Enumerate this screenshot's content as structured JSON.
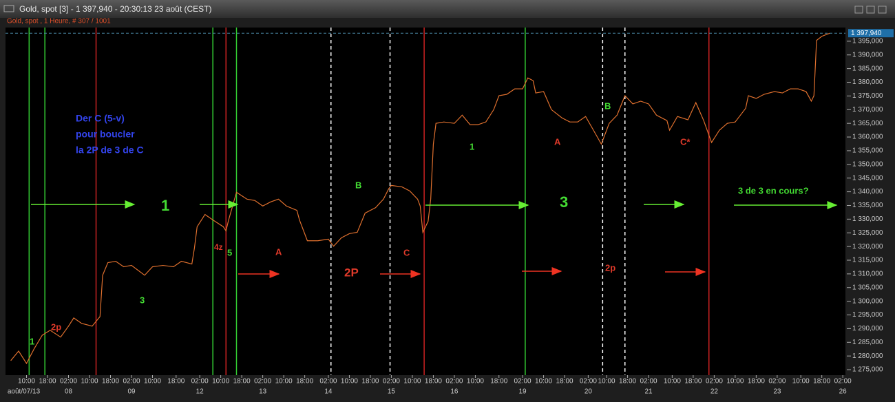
{
  "chart_data": {
    "type": "line",
    "title": "Gold, spot [3] - 1 397,940 - 20:30:13  23 août (CEST)",
    "subtitle": "Gold, spot , 1 Heure, # 307 / 1001",
    "color": "#e0702e",
    "x": [
      2,
      5,
      8,
      11,
      14,
      17,
      21,
      24,
      26,
      29,
      33,
      36,
      37,
      39,
      42,
      45,
      48,
      53,
      56,
      60,
      64,
      67,
      71,
      72,
      73,
      76,
      79,
      83,
      84,
      85,
      88,
      92,
      95,
      98,
      101,
      104,
      107,
      111,
      112,
      115,
      119,
      123,
      125,
      128,
      131,
      134,
      137,
      141,
      144,
      146,
      147,
      151,
      154,
      157,
      158,
      159,
      161,
      162,
      163,
      164,
      167,
      171,
      174,
      177,
      180,
      183,
      186,
      188,
      191,
      194,
      197,
      199,
      201,
      202,
      205,
      208,
      212,
      215,
      218,
      221,
      224,
      227,
      230,
      233,
      236,
      239,
      242,
      245,
      248,
      252,
      253,
      256,
      260,
      263,
      266,
      269,
      272,
      275,
      278,
      282,
      283,
      286,
      289,
      293,
      296,
      299,
      302,
      305,
      307,
      308,
      309,
      311,
      314
    ],
    "values": [
      1278.3,
      1281.8,
      1277.3,
      1282.8,
      1287.6,
      1289.4,
      1286.9,
      1290.9,
      1293.9,
      1291.9,
      1290.9,
      1294.4,
      1309.5,
      1314.1,
      1314.6,
      1312.6,
      1313.1,
      1309.5,
      1312.6,
      1313.1,
      1312.6,
      1314.6,
      1313.6,
      1319.6,
      1327.2,
      1331.7,
      1329.7,
      1327.2,
      1325.7,
      1329.7,
      1339.8,
      1337.3,
      1336.8,
      1334.8,
      1336.3,
      1337.3,
      1334.8,
      1333.2,
      1329.7,
      1322.1,
      1322.1,
      1322.7,
      1320.1,
      1323.2,
      1324.7,
      1325.2,
      1332.2,
      1334.2,
      1337.3,
      1341.1,
      1342.3,
      1341.8,
      1340.3,
      1337.3,
      1334.8,
      1325.2,
      1329.2,
      1337.3,
      1357.4,
      1365.0,
      1365.5,
      1365.0,
      1368.0,
      1364.5,
      1364.5,
      1365.5,
      1370.0,
      1375.1,
      1375.6,
      1377.6,
      1377.6,
      1381.6,
      1380.6,
      1376.1,
      1376.6,
      1370.0,
      1367.0,
      1365.5,
      1365.5,
      1367.5,
      1362.5,
      1357.4,
      1365.0,
      1368.0,
      1375.1,
      1372.1,
      1373.1,
      1372.1,
      1368.0,
      1366.0,
      1362.5,
      1367.5,
      1366.3,
      1372.6,
      1366.0,
      1358.0,
      1362.5,
      1365.0,
      1365.5,
      1370.5,
      1375.1,
      1374.1,
      1375.6,
      1376.6,
      1376.1,
      1377.6,
      1377.6,
      1376.6,
      1373.1,
      1375.1,
      1395.3,
      1396.8,
      1397.9
    ],
    "xlim": [
      0,
      320
    ],
    "ylim": [
      1273,
      1400
    ],
    "yticks": [
      {
        "value": 1275,
        "label": "1 275,000"
      },
      {
        "value": 1280,
        "label": "1 280,000"
      },
      {
        "value": 1285,
        "label": "1 285,000"
      },
      {
        "value": 1290,
        "label": "1 290,000"
      },
      {
        "value": 1295,
        "label": "1 295,000"
      },
      {
        "value": 1300,
        "label": "1 300,000"
      },
      {
        "value": 1305,
        "label": "1 305,000"
      },
      {
        "value": 1310,
        "label": "1 310,000"
      },
      {
        "value": 1315,
        "label": "1 315,000"
      },
      {
        "value": 1320,
        "label": "1 320,000"
      },
      {
        "value": 1325,
        "label": "1 325,000"
      },
      {
        "value": 1330,
        "label": "1 330,000"
      },
      {
        "value": 1335,
        "label": "1 335,000"
      },
      {
        "value": 1340,
        "label": "1 340,000"
      },
      {
        "value": 1345,
        "label": "1 345,000"
      },
      {
        "value": 1350,
        "label": "1 350,000"
      },
      {
        "value": 1355,
        "label": "1 355,000"
      },
      {
        "value": 1360,
        "label": "1 360,000"
      },
      {
        "value": 1365,
        "label": "1 365,000"
      },
      {
        "value": 1370,
        "label": "1 370,000"
      },
      {
        "value": 1375,
        "label": "1 375,000"
      },
      {
        "value": 1380,
        "label": "1 380,000"
      },
      {
        "value": 1385,
        "label": "1 385,000"
      },
      {
        "value": 1390,
        "label": "1 390,000"
      },
      {
        "value": 1395,
        "label": "1 395,000"
      }
    ],
    "last_price": {
      "value": 1397.94,
      "label": "1 397,940"
    },
    "xticks": [
      {
        "value": 8,
        "label": "10:00"
      },
      {
        "value": 16,
        "label": "18:00"
      },
      {
        "value": 24,
        "label": "02:00"
      },
      {
        "value": 32,
        "label": "10:00"
      },
      {
        "value": 40,
        "label": "18:00"
      },
      {
        "value": 48,
        "label": "02:00"
      },
      {
        "value": 56,
        "label": "10:00"
      },
      {
        "value": 65,
        "label": "18:00"
      },
      {
        "value": 74,
        "label": "02:00"
      },
      {
        "value": 82,
        "label": "10:00"
      },
      {
        "value": 90,
        "label": "18:00"
      },
      {
        "value": 98,
        "label": "02:00"
      },
      {
        "value": 106,
        "label": "10:00"
      },
      {
        "value": 114,
        "label": "18:00"
      },
      {
        "value": 123,
        "label": "02:00"
      },
      {
        "value": 131,
        "label": "10:00"
      },
      {
        "value": 139,
        "label": "18:00"
      },
      {
        "value": 147,
        "label": "02:00"
      },
      {
        "value": 155,
        "label": "10:00"
      },
      {
        "value": 163,
        "label": "18:00"
      },
      {
        "value": 171,
        "label": "02:00"
      },
      {
        "value": 179,
        "label": "10:00"
      },
      {
        "value": 188,
        "label": "18:00"
      },
      {
        "value": 197,
        "label": "02:00"
      },
      {
        "value": 205,
        "label": "10:00"
      },
      {
        "value": 213,
        "label": "18:00"
      },
      {
        "value": 222,
        "label": "02:00"
      },
      {
        "value": 229,
        "label": "10:00"
      },
      {
        "value": 237,
        "label": "18:00"
      },
      {
        "value": 245,
        "label": "02:00"
      },
      {
        "value": 254,
        "label": "10:00"
      },
      {
        "value": 262,
        "label": "18:00"
      },
      {
        "value": 270,
        "label": "02:00"
      },
      {
        "value": 278,
        "label": "10:00"
      },
      {
        "value": 286,
        "label": "18:00"
      },
      {
        "value": 294,
        "label": "02:00"
      },
      {
        "value": 303,
        "label": "10:00"
      },
      {
        "value": 311,
        "label": "18:00"
      },
      {
        "value": 319,
        "label": "02:00"
      }
    ],
    "xdates": [
      {
        "value": 8,
        "label": "août/07/13"
      },
      {
        "value": 24,
        "label": "08"
      },
      {
        "value": 48,
        "label": "09"
      },
      {
        "value": 74,
        "label": "12"
      },
      {
        "value": 98,
        "label": "13"
      },
      {
        "value": 123,
        "label": "14"
      },
      {
        "value": 147,
        "label": "15"
      },
      {
        "value": 171,
        "label": "16"
      },
      {
        "value": 197,
        "label": "19"
      },
      {
        "value": 222,
        "label": "20"
      },
      {
        "value": 245,
        "label": "21"
      },
      {
        "value": 270,
        "label": "22"
      },
      {
        "value": 294,
        "label": "23"
      },
      {
        "value": 319,
        "label": "26"
      }
    ],
    "vlines": [
      {
        "x": 9,
        "color": "#33cc33",
        "dashed": false
      },
      {
        "x": 15,
        "color": "#33cc33",
        "dashed": false
      },
      {
        "x": 34.5,
        "color": "#cc2222",
        "dashed": false
      },
      {
        "x": 79,
        "color": "#33cc33",
        "dashed": false
      },
      {
        "x": 84,
        "color": "#cc2222",
        "dashed": false
      },
      {
        "x": 88,
        "color": "#33cc33",
        "dashed": false
      },
      {
        "x": 124,
        "color": "#ffffff",
        "dashed": true
      },
      {
        "x": 146.5,
        "color": "#ffffff",
        "dashed": true
      },
      {
        "x": 159.5,
        "color": "#cc2222",
        "dashed": false
      },
      {
        "x": 198,
        "color": "#33cc33",
        "dashed": false
      },
      {
        "x": 227.5,
        "color": "#ffffff",
        "dashed": true
      },
      {
        "x": 236,
        "color": "#ffffff",
        "dashed": true
      },
      {
        "x": 268,
        "color": "#cc2222",
        "dashed": false
      }
    ],
    "annotations": [
      {
        "text": "Der C (5-v)",
        "color": "#3344ee"
      },
      {
        "text": "pour boucler",
        "color": "#3344ee"
      },
      {
        "text": "la 2P de 3 de C",
        "color": "#3344ee"
      },
      {
        "text": "1",
        "color": "#44dd33"
      },
      {
        "text": "3",
        "color": "#44dd33"
      },
      {
        "text": "1",
        "color": "#44dd33"
      },
      {
        "text": "2p",
        "color": "#e03a2a"
      },
      {
        "text": "4z",
        "color": "#e03a2a"
      },
      {
        "text": "5",
        "color": "#44dd33"
      },
      {
        "text": "A",
        "color": "#e03a2a"
      },
      {
        "text": "B",
        "color": "#44dd33"
      },
      {
        "text": "2P",
        "color": "#e03a2a"
      },
      {
        "text": "C",
        "color": "#e03a2a"
      },
      {
        "text": "1",
        "color": "#44dd33"
      },
      {
        "text": "A",
        "color": "#e03a2a"
      },
      {
        "text": "3",
        "color": "#44dd33"
      },
      {
        "text": "B",
        "color": "#44dd33"
      },
      {
        "text": "2p",
        "color": "#e03a2a"
      },
      {
        "text": "C*",
        "color": "#e03a2a"
      },
      {
        "text": "3 de 3 en cours?",
        "color": "#44dd33"
      }
    ]
  }
}
